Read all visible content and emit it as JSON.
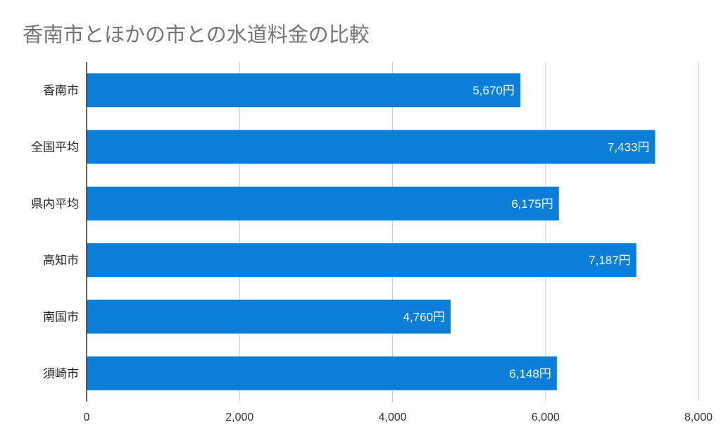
{
  "chart_data": {
    "type": "bar",
    "orientation": "horizontal",
    "title": "香南市とほかの市との水道料金の比較",
    "categories": [
      "香南市",
      "全国平均",
      "県内平均",
      "高知市",
      "南国市",
      "須崎市"
    ],
    "values": [
      5670,
      7433,
      6175,
      7187,
      4760,
      6148
    ],
    "data_labels": [
      "5,670円",
      "7,433円",
      "6,175円",
      "7,187円",
      "4,760円",
      "6,148円"
    ],
    "xlim": [
      0,
      8000
    ],
    "xticks": [
      0,
      2000,
      4000,
      6000,
      8000
    ],
    "xtick_labels": [
      "0",
      "2,000",
      "4,000",
      "6,000",
      "8,000"
    ],
    "xlabel": "",
    "ylabel": "",
    "grid": true,
    "legend": "none",
    "bar_color": "#0b7fd8"
  }
}
